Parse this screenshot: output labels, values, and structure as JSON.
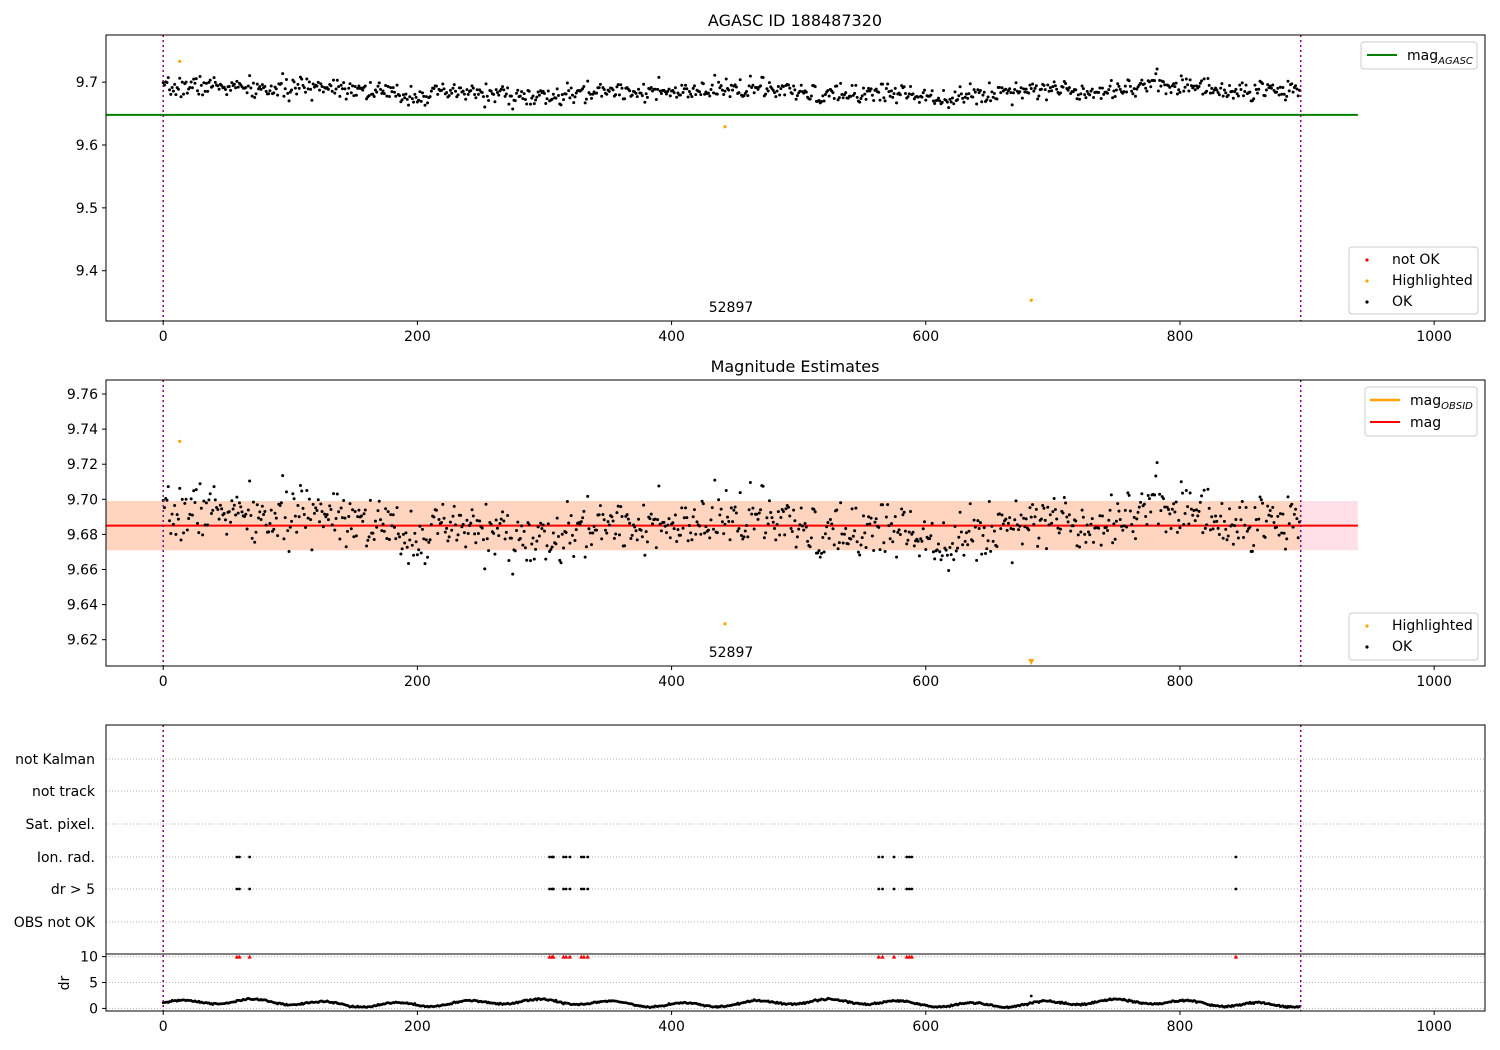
{
  "figure": {
    "panels": [
      "top",
      "middle",
      "bottom"
    ]
  },
  "chart_data": [
    {
      "id": "top",
      "type": "scatter",
      "title": "AGASC ID 188487320",
      "xlim": [
        -45,
        1040
      ],
      "ylim": [
        9.32,
        9.775
      ],
      "xticks": [
        0,
        200,
        400,
        600,
        800,
        1000
      ],
      "yticks": [
        9.4,
        9.5,
        9.6,
        9.7
      ],
      "vlines": [
        0,
        895
      ],
      "annotation": {
        "text": "52897",
        "x": 447,
        "y": 9.335
      },
      "hline": {
        "name": "mag",
        "subscript": "AGASC",
        "value": 9.648,
        "x_range": [
          -45,
          940
        ],
        "color": "#008000"
      },
      "legend_upper": [
        {
          "label": "mag",
          "subscript": "AGASC",
          "kind": "line",
          "color": "#008000"
        }
      ],
      "legend_lower": [
        {
          "label": "not OK",
          "kind": "dot",
          "color": "#ff0000"
        },
        {
          "label": "Highlighted",
          "kind": "dot",
          "color": "#ffa500"
        },
        {
          "label": "OK",
          "kind": "dot",
          "color": "#000000"
        }
      ],
      "scatter": {
        "n": 895,
        "base": 9.685,
        "amplitude": 0.012,
        "noise": 0.013,
        "highlighted": [
          [
            13,
            9.733
          ],
          [
            442,
            9.629
          ],
          [
            683,
            9.353
          ]
        ]
      }
    },
    {
      "id": "middle",
      "type": "scatter",
      "title": "Magnitude Estimates",
      "xlim": [
        -45,
        1040
      ],
      "ylim": [
        9.605,
        9.768
      ],
      "xticks": [
        0,
        200,
        400,
        600,
        800,
        1000
      ],
      "yticks": [
        9.62,
        9.64,
        9.66,
        9.68,
        9.7,
        9.72,
        9.74,
        9.76
      ],
      "vlines": [
        0,
        895
      ],
      "annotation": {
        "text": "52897",
        "x": 447,
        "y": 9.611
      },
      "band_outer": {
        "range": [
          9.671,
          9.699
        ],
        "color": "#ffe0e6"
      },
      "band_inner": {
        "range": [
          9.671,
          9.699
        ],
        "x_range": [
          -45,
          895
        ],
        "color": "#ffd5c0"
      },
      "hline": {
        "name": "mag",
        "value": 9.685,
        "x_range": [
          -45,
          940
        ],
        "color": "#ff0000"
      },
      "legend_upper": [
        {
          "label": "mag",
          "subscript": "OBSID",
          "kind": "line",
          "color": "#ffa500"
        },
        {
          "label": "mag",
          "kind": "line",
          "color": "#ff0000"
        }
      ],
      "legend_lower": [
        {
          "label": "Highlighted",
          "kind": "dot",
          "color": "#ffa500"
        },
        {
          "label": "OK",
          "kind": "dot",
          "color": "#000000"
        }
      ],
      "scatter": {
        "n": 895,
        "base": 9.685,
        "amplitude": 0.012,
        "noise": 0.013,
        "highlighted": [
          [
            13,
            9.733
          ],
          [
            442,
            9.629
          ]
        ],
        "below_marker": {
          "x": 683,
          "color": "#ffa500"
        }
      }
    },
    {
      "id": "bottom",
      "type": "scatter",
      "xlim": [
        -45,
        1040
      ],
      "xticks": [
        0,
        200,
        400,
        600,
        800,
        1000
      ],
      "vlines": [
        0,
        895
      ],
      "flag_rows": [
        "not Kalman",
        "not track",
        "Sat. pixel.",
        "Ion. rad.",
        "dr > 5",
        "OBS not OK"
      ],
      "flag_points": {
        "Ion. rad.": [
          58,
          60,
          68,
          304,
          306,
          307,
          315,
          317,
          320,
          329,
          331,
          334,
          563,
          566,
          575,
          585,
          587,
          589,
          844
        ],
        "dr > 5": [
          58,
          60,
          68,
          304,
          306,
          307,
          315,
          317,
          320,
          329,
          331,
          334,
          563,
          566,
          575,
          585,
          587,
          589,
          844
        ]
      },
      "dr": {
        "ylabel": "dr",
        "ylim": [
          -0.5,
          10.5
        ],
        "yticks": [
          0,
          5,
          10
        ],
        "n": 895,
        "base": 1.0,
        "clipped_marker_x": [
          58,
          60,
          68,
          304,
          306,
          307,
          315,
          317,
          320,
          329,
          331,
          334,
          563,
          566,
          575,
          585,
          587,
          589,
          844
        ],
        "clip_value": 10,
        "outlier": [
          683,
          2.4
        ]
      }
    }
  ]
}
